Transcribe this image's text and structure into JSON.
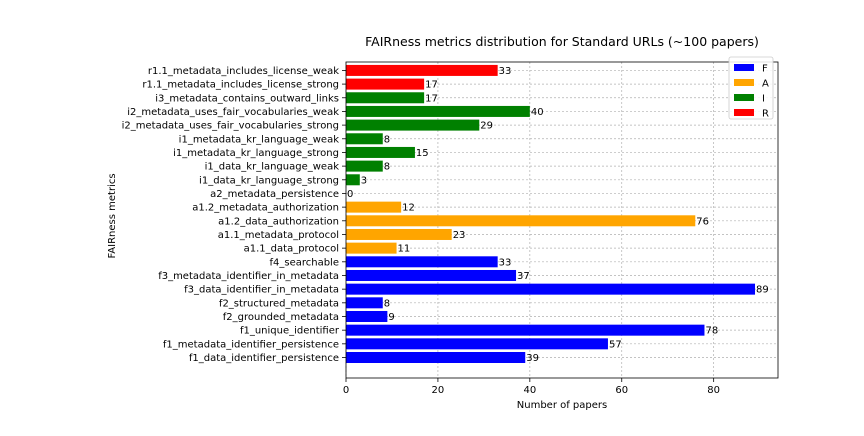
{
  "chart_data": {
    "type": "bar",
    "orientation": "horizontal",
    "title": "FAIRness metrics distribution for Standard URLs (~100 papers)",
    "xlabel": "Number of papers",
    "ylabel": "FAIRness metrics",
    "xlim": [
      0,
      94
    ],
    "xticks": [
      0,
      20,
      40,
      60,
      80
    ],
    "grid": true,
    "legend_position": "top-right",
    "series": [
      {
        "name": "F",
        "color": "#0000ff"
      },
      {
        "name": "A",
        "color": "#ffa500"
      },
      {
        "name": "I",
        "color": "#008000"
      },
      {
        "name": "R",
        "color": "#ff0000"
      }
    ],
    "bars": [
      {
        "label": "f1_data_identifier_persistence",
        "value": 39,
        "series": "F"
      },
      {
        "label": "f1_metadata_identifier_persistence",
        "value": 57,
        "series": "F"
      },
      {
        "label": "f1_unique_identifier",
        "value": 78,
        "series": "F"
      },
      {
        "label": "f2_grounded_metadata",
        "value": 9,
        "series": "F"
      },
      {
        "label": "f2_structured_metadata",
        "value": 8,
        "series": "F"
      },
      {
        "label": "f3_data_identifier_in_metadata",
        "value": 89,
        "series": "F"
      },
      {
        "label": "f3_metadata_identifier_in_metadata",
        "value": 37,
        "series": "F"
      },
      {
        "label": "f4_searchable",
        "value": 33,
        "series": "F"
      },
      {
        "label": "a1.1_data_protocol",
        "value": 11,
        "series": "A"
      },
      {
        "label": "a1.1_metadata_protocol",
        "value": 23,
        "series": "A"
      },
      {
        "label": "a1.2_data_authorization",
        "value": 76,
        "series": "A"
      },
      {
        "label": "a1.2_metadata_authorization",
        "value": 12,
        "series": "A"
      },
      {
        "label": "a2_metadata_persistence",
        "value": 0,
        "series": "A"
      },
      {
        "label": "i1_data_kr_language_strong",
        "value": 3,
        "series": "I"
      },
      {
        "label": "i1_data_kr_language_weak",
        "value": 8,
        "series": "I"
      },
      {
        "label": "i1_metadata_kr_language_strong",
        "value": 15,
        "series": "I"
      },
      {
        "label": "i1_metadata_kr_language_weak",
        "value": 8,
        "series": "I"
      },
      {
        "label": "i2_metadata_uses_fair_vocabularies_strong",
        "value": 29,
        "series": "I"
      },
      {
        "label": "i2_metadata_uses_fair_vocabularies_weak",
        "value": 40,
        "series": "I"
      },
      {
        "label": "i3_metadata_contains_outward_links",
        "value": 17,
        "series": "I"
      },
      {
        "label": "r1.1_metadata_includes_license_strong",
        "value": 17,
        "series": "R"
      },
      {
        "label": "r1.1_metadata_includes_license_weak",
        "value": 33,
        "series": "R"
      }
    ]
  }
}
